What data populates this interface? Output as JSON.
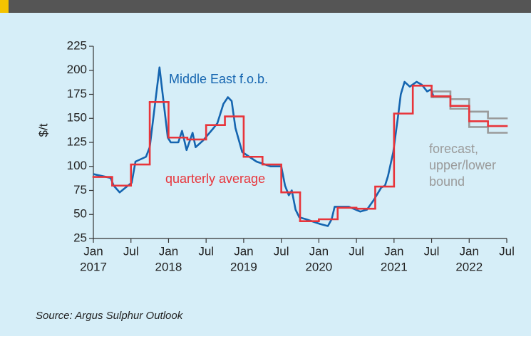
{
  "chart_data": {
    "type": "line",
    "ylabel": "$/t",
    "source": "Source: Argus Sulphur Outlook",
    "xlim": [
      2017.0,
      2022.5
    ],
    "ylim": [
      25,
      225
    ],
    "yticks": [
      25,
      50,
      75,
      100,
      125,
      150,
      175,
      200,
      225
    ],
    "xticks": [
      {
        "value": 2017.0,
        "label": "Jan"
      },
      {
        "value": 2017.5,
        "label": "Jul"
      },
      {
        "value": 2018.0,
        "label": "Jan"
      },
      {
        "value": 2018.5,
        "label": "Jul"
      },
      {
        "value": 2019.0,
        "label": "Jan"
      },
      {
        "value": 2019.5,
        "label": "Jul"
      },
      {
        "value": 2020.0,
        "label": "Jan"
      },
      {
        "value": 2020.5,
        "label": "Jul"
      },
      {
        "value": 2021.0,
        "label": "Jan"
      },
      {
        "value": 2021.5,
        "label": "Jul"
      },
      {
        "value": 2022.0,
        "label": "Jan"
      },
      {
        "value": 2022.5,
        "label": "Jul"
      }
    ],
    "year_labels": [
      {
        "value": 2017.0,
        "label": "2017"
      },
      {
        "value": 2018.0,
        "label": "2018"
      },
      {
        "value": 2019.0,
        "label": "2019"
      },
      {
        "value": 2020.0,
        "label": "2020"
      },
      {
        "value": 2021.0,
        "label": "2021"
      },
      {
        "value": 2022.0,
        "label": "2022"
      }
    ],
    "series": [
      {
        "name": "Middle East f.o.b.",
        "color": "#1565b0",
        "style": "line",
        "x": [
          2017.0,
          2017.23,
          2017.27,
          2017.35,
          2017.46,
          2017.51,
          2017.56,
          2017.7,
          2017.75,
          2017.88,
          2017.99,
          2018.03,
          2018.13,
          2018.18,
          2018.24,
          2018.32,
          2018.36,
          2018.46,
          2018.6,
          2018.65,
          2018.73,
          2018.79,
          2018.84,
          2018.89,
          2018.98,
          2019.17,
          2019.36,
          2019.5,
          2019.55,
          2019.6,
          2019.64,
          2019.69,
          2019.74,
          2019.83,
          2020.02,
          2020.12,
          2020.17,
          2020.21,
          2020.4,
          2020.55,
          2020.64,
          2020.73,
          2020.83,
          2020.88,
          2020.92,
          2020.99,
          2021.05,
          2021.09,
          2021.14,
          2021.21,
          2021.3,
          2021.37,
          2021.44,
          2021.49,
          2021.53
        ],
        "values": [
          92,
          88,
          80,
          73,
          80,
          83,
          105,
          110,
          120,
          203,
          130,
          125,
          125,
          137,
          117,
          135,
          120,
          127,
          140,
          145,
          165,
          172,
          168,
          140,
          115,
          105,
          100,
          100,
          80,
          70,
          75,
          55,
          47,
          45,
          40,
          38,
          45,
          58,
          58,
          53,
          55,
          65,
          78,
          80,
          90,
          115,
          150,
          175,
          188,
          183,
          188,
          185,
          178,
          180,
          172
        ]
      },
      {
        "name": "quarterly average",
        "color": "#e8343a",
        "style": "step",
        "x": [
          2017.0,
          2017.25,
          2017.5,
          2017.75,
          2018.0,
          2018.25,
          2018.5,
          2018.75,
          2019.0,
          2019.25,
          2019.5,
          2019.75,
          2020.0,
          2020.25,
          2020.5,
          2020.75,
          2021.0,
          2021.25,
          2021.5,
          2021.75,
          2022.0,
          2022.25
        ],
        "values": [
          89,
          80,
          102,
          167,
          130,
          128,
          143,
          152,
          110,
          102,
          73,
          43,
          45,
          57,
          56,
          79,
          155,
          184,
          173,
          163,
          147,
          142
        ]
      },
      {
        "name": "forecast, upper/lower bound",
        "color": "#9a9a9a",
        "style": "step",
        "x": [
          2021.5,
          2021.75,
          2022.0,
          2022.25
        ],
        "values": [
          178,
          170,
          157,
          150
        ]
      },
      {
        "color": "#9a9a9a",
        "style": "step",
        "x": [
          2021.5,
          2021.75,
          2022.0,
          2022.25
        ],
        "values": [
          172,
          160,
          141,
          135
        ]
      }
    ],
    "annotations": [
      {
        "text": "Middle East f.o.b.",
        "color": "#1565b0"
      },
      {
        "text": "quarterly average",
        "color": "#e8343a"
      },
      {
        "text": "forecast,",
        "color": "#9a9a9a"
      },
      {
        "text": "upper/lower",
        "color": "#9a9a9a"
      },
      {
        "text": "bound",
        "color": "#9a9a9a"
      }
    ]
  }
}
